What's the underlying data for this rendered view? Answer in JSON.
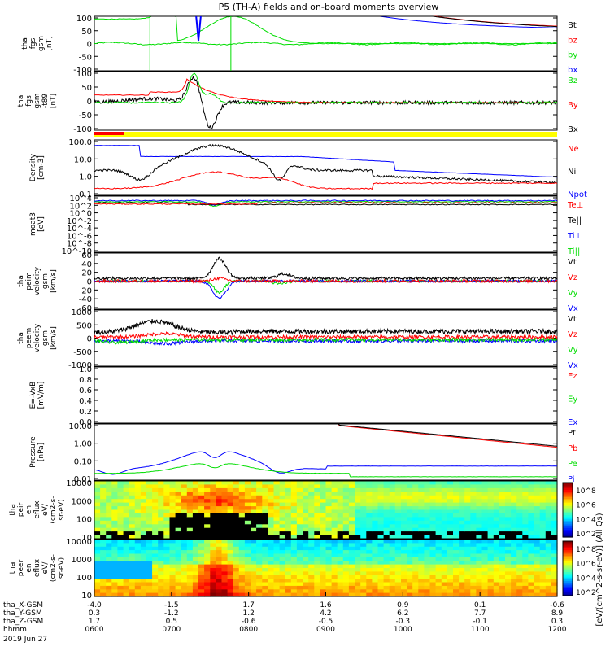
{
  "title": "P5 (TH-A) fields and on-board moments overview",
  "colors": {
    "black": "#000000",
    "red": "#ff0000",
    "green": "#00dd00",
    "blue": "#0000ff",
    "yellow": "#ffff00"
  },
  "colorbar": {
    "label": "[eV/(cm^2-s-sr-eV)] (All Qs)",
    "ticks": [
      "10^8",
      "10^6",
      "10^4",
      "10^2"
    ]
  },
  "footer": {
    "rows": [
      {
        "label": "tha_X-GSM",
        "values": [
          "-4.0",
          "-1.5",
          "1.7",
          "1.6",
          "0.9",
          "0.1",
          "-0.6"
        ]
      },
      {
        "label": "tha_Y-GSM",
        "values": [
          "0.3",
          "-1.2",
          "1.2",
          "4.2",
          "6.2",
          "7.7",
          "8.9"
        ]
      },
      {
        "label": "tha_Z-GSM",
        "values": [
          "1.7",
          "0.5",
          "-0.6",
          "-0.5",
          "-0.3",
          "-0.1",
          "0.3"
        ]
      },
      {
        "label": "hhmm",
        "values": [
          "0600",
          "0700",
          "0800",
          "0900",
          "1000",
          "1100",
          "1200"
        ]
      }
    ],
    "date": "2019 Jun 27"
  },
  "chart_data": {
    "type": "line",
    "time_range": [
      "0600",
      "1200"
    ],
    "panels": [
      {
        "ylabel_lines": [
          "tha",
          "fgs",
          "gsm",
          "[nT]"
        ],
        "ylim": [
          -100,
          100
        ],
        "ticks": [
          "100",
          "50",
          "0",
          "-50",
          "-100"
        ],
        "legend": [
          {
            "text": "Bt",
            "color": "#000000"
          },
          {
            "text": "bz",
            "color": "#ff0000"
          },
          {
            "text": "by",
            "color": "#00dd00"
          },
          {
            "text": "bx",
            "color": "#0000ff"
          }
        ]
      },
      {
        "ylabel_lines": [
          "tha",
          "fgs",
          "gsm",
          "-t89",
          "[nT]"
        ],
        "ylim": [
          -120,
          100
        ],
        "ticks": [
          "100",
          "50",
          "0",
          "-50",
          "-100"
        ],
        "legend": [
          {
            "text": "Bz",
            "color": "#00dd00"
          },
          {
            "text": "By",
            "color": "#ff0000"
          },
          {
            "text": "Bx",
            "color": "#000000"
          }
        ]
      },
      {
        "ylabel_lines": [
          "Density",
          "[cm-3]"
        ],
        "ylim": [
          0.05,
          300
        ],
        "ticks": [
          "100.0",
          "10.0",
          "1.0",
          "0.1"
        ],
        "legend": [
          {
            "text": "Ne",
            "color": "#ff0000"
          },
          {
            "text": "Ni",
            "color": "#000000"
          },
          {
            "text": "Npot",
            "color": "#0000ff"
          }
        ]
      },
      {
        "ylabel_lines": [
          "moat3",
          "[eV]"
        ],
        "ylim": [
          1e-10,
          100000.0
        ],
        "ticks": [
          "10^4",
          "10^2",
          "10^0",
          "10^-2",
          "10^-4",
          "10^-6",
          "10^-8",
          "10^-10"
        ],
        "legend": [
          {
            "text": "Te⊥",
            "color": "#ff0000"
          },
          {
            "text": "Te||",
            "color": "#000000"
          },
          {
            "text": "Ti⊥",
            "color": "#0000ff"
          },
          {
            "text": "Ti||",
            "color": "#00dd00"
          }
        ]
      },
      {
        "ylabel_lines": [
          "tha",
          "peim",
          "velocity",
          "gsm",
          "[km/s]"
        ],
        "ylim": [
          -60,
          60
        ],
        "ticks": [
          "60",
          "40",
          "20",
          "0",
          "-20",
          "-40",
          "-60"
        ],
        "legend": [
          {
            "text": "Vt",
            "color": "#000000"
          },
          {
            "text": "Vz",
            "color": "#ff0000"
          },
          {
            "text": "Vy",
            "color": "#00dd00"
          },
          {
            "text": "Vx",
            "color": "#0000ff"
          }
        ]
      },
      {
        "ylabel_lines": [
          "tha",
          "peem",
          "velocity",
          "gsm",
          "[km/s]"
        ],
        "ylim": [
          -1000,
          1000
        ],
        "ticks": [
          "1000",
          "500",
          "0",
          "-500",
          "-1000"
        ],
        "legend": [
          {
            "text": "Vt",
            "color": "#000000"
          },
          {
            "text": "Vz",
            "color": "#ff0000"
          },
          {
            "text": "Vy",
            "color": "#00dd00"
          },
          {
            "text": "Vx",
            "color": "#0000ff"
          }
        ]
      },
      {
        "ylabel_lines": [
          "E=-VxB",
          "[mV/m]"
        ],
        "ylim": [
          0,
          1
        ],
        "ticks": [
          "1.0",
          "0.8",
          "0.6",
          "0.4",
          "0.2",
          "0.0"
        ],
        "legend": [
          {
            "text": "Ez",
            "color": "#ff0000"
          },
          {
            "text": "Ey",
            "color": "#00dd00"
          },
          {
            "text": "Ex",
            "color": "#0000ff"
          }
        ]
      },
      {
        "ylabel_lines": [
          "Pressure",
          "[nPa]"
        ],
        "ylim": [
          0.005,
          20
        ],
        "ticks": [
          "10.00",
          "1.00",
          "0.10",
          "0.01"
        ],
        "legend": [
          {
            "text": "Pt",
            "color": "#000000"
          },
          {
            "text": "Pb",
            "color": "#ff0000"
          },
          {
            "text": "Pe",
            "color": "#00dd00"
          },
          {
            "text": "Pi",
            "color": "#0000ff"
          }
        ]
      },
      {
        "ylabel_lines": [
          "tha",
          "peir",
          "en",
          "eflux",
          "eV/",
          "(cm2-s-",
          "sr-eV)"
        ],
        "ylim": [
          5,
          20000
        ],
        "ticks": [
          "10000",
          "1000",
          "100",
          "10"
        ],
        "legend": []
      },
      {
        "ylabel_lines": [
          "tha",
          "peer",
          "en",
          "eflux",
          "eV/",
          "(cm2-s-",
          "sr-eV)"
        ],
        "ylim": [
          5,
          20000
        ],
        "ticks": [
          "10000",
          "1000",
          "100",
          "10"
        ],
        "legend": []
      }
    ]
  }
}
